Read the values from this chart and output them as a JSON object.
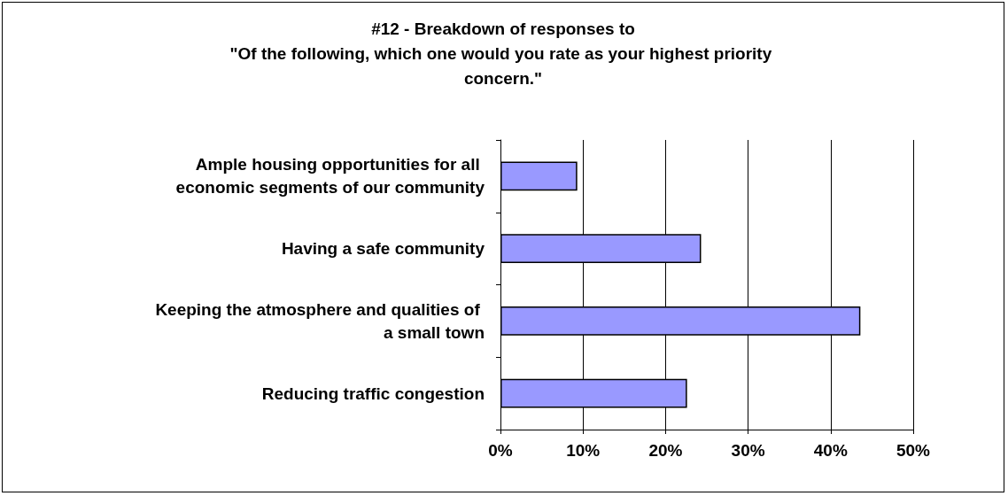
{
  "chart_data": {
    "type": "bar",
    "orientation": "horizontal",
    "title": "#12 - Breakdown of responses to\n\"Of the following, which one would you rate as your highest priority concern.\"",
    "categories": [
      "Ample housing opportunities for all economic segments of our community",
      "Having a safe community",
      "Keeping the atmosphere and qualities of a small town",
      "Reducing traffic congestion"
    ],
    "values": [
      9.3,
      24.3,
      43.6,
      22.6
    ],
    "color": "#9999ff",
    "xlim": [
      0,
      50
    ],
    "xticks": [
      {
        "value": 0,
        "label": "0%"
      },
      {
        "value": 10,
        "label": "10%"
      },
      {
        "value": 20,
        "label": "20%"
      },
      {
        "value": 30,
        "label": "30%"
      },
      {
        "value": 40,
        "label": "40%"
      },
      {
        "value": 50,
        "label": "50%"
      }
    ],
    "grid": "x"
  }
}
